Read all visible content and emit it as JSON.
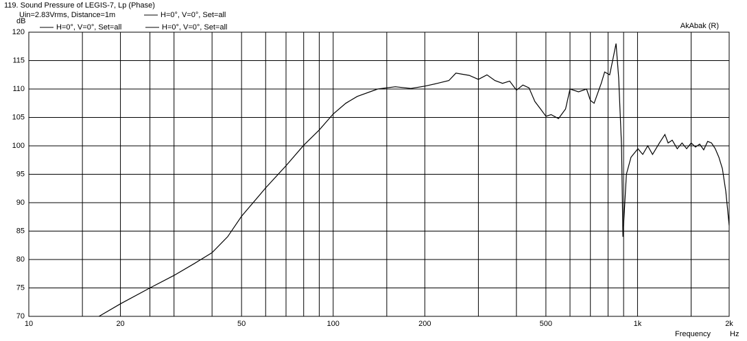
{
  "chart_data": {
    "type": "line",
    "title": "119. Sound Pressure of LEGIS-7, Lp (Phase)",
    "subtitle": "Uin=2.83Vrms, Distance=1m",
    "watermark": "AkAbak (R)",
    "y_label": "dB",
    "x_label": "Frequency",
    "x_unit": "Hz",
    "log_x": true,
    "grid": true,
    "xlim": [
      10,
      2000
    ],
    "ylim": [
      70,
      120
    ],
    "xticks": [
      10,
      20,
      50,
      100,
      200,
      500,
      {
        "value": 1000,
        "label": "1k"
      },
      {
        "value": 2000,
        "label": "2k"
      }
    ],
    "xminor": [
      15,
      25,
      30,
      40,
      60,
      70,
      80,
      90,
      150,
      300,
      400,
      600,
      700,
      800,
      900,
      1500
    ],
    "yticks": [
      70,
      75,
      80,
      85,
      90,
      95,
      100,
      105,
      110,
      115,
      120
    ],
    "other_legend_entries": [
      "H=0°, V=0°, Set=all",
      "H=0°, V=0°, Set=all"
    ],
    "x": [
      17,
      20,
      25,
      30,
      35,
      40,
      45,
      50,
      60,
      70,
      80,
      90,
      100,
      110,
      120,
      140,
      160,
      180,
      200,
      220,
      240,
      253,
      280,
      300,
      320,
      340,
      360,
      380,
      400,
      420,
      440,
      460,
      480,
      500,
      520,
      550,
      580,
      600,
      640,
      680,
      700,
      720,
      760,
      780,
      810,
      828,
      850,
      867,
      886,
      895,
      919,
      952,
      1003,
      1040,
      1080,
      1120,
      1180,
      1230,
      1260,
      1300,
      1350,
      1400,
      1450,
      1500,
      1550,
      1600,
      1650,
      1700,
      1750,
      1800,
      1850,
      1900,
      1950,
      2000
    ],
    "series": [
      {
        "name": "H=0°, V=0°, Set=all",
        "color": "#000000",
        "values": [
          70,
          72.2,
          75,
          77.2,
          79.3,
          81.2,
          84,
          87.6,
          92.6,
          96.5,
          100.1,
          102.8,
          105.6,
          107.5,
          108.7,
          110,
          110.4,
          110.1,
          110.5,
          111,
          111.5,
          112.8,
          112.4,
          111.7,
          112.5,
          111.5,
          111,
          111.4,
          109.8,
          110.7,
          110.2,
          107.8,
          106.5,
          105.2,
          105.5,
          104.8,
          106.5,
          110,
          109.5,
          110,
          108,
          107.5,
          111,
          113,
          112.5,
          115,
          118,
          112,
          100,
          84,
          95,
          98,
          99.5,
          98.5,
          100,
          98.5,
          100.5,
          102,
          100.5,
          101,
          99.5,
          100.5,
          99.5,
          100.5,
          99.8,
          100.3,
          99.3,
          100.8,
          100.5,
          99.5,
          98,
          96,
          92,
          86
        ]
      }
    ]
  }
}
